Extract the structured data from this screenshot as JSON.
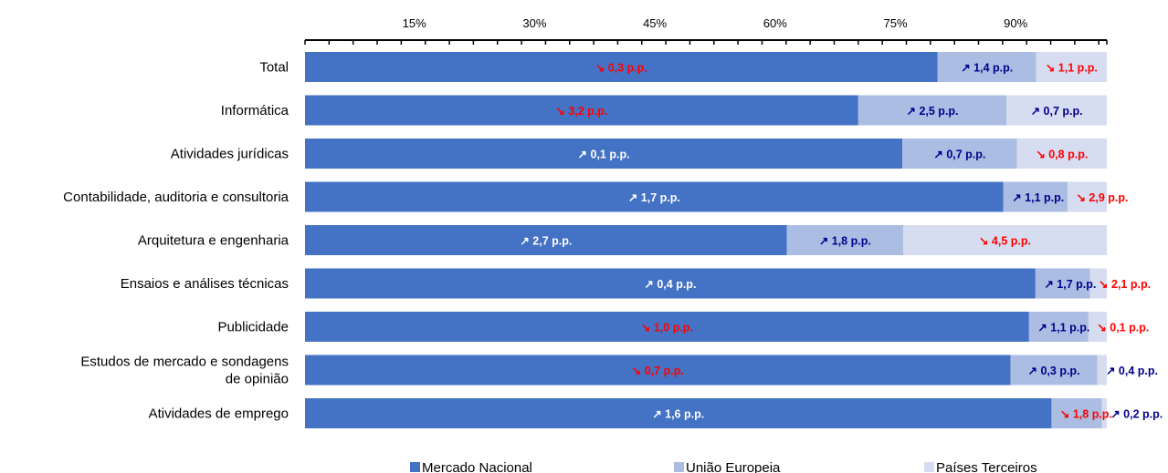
{
  "chart_data": {
    "type": "bar",
    "orientation": "horizontal",
    "stacked": true,
    "xlim": [
      0,
      100
    ],
    "x_ticks": [
      "15%",
      "30%",
      "45%",
      "60%",
      "75%",
      "90%"
    ],
    "tick_values": [
      15,
      30,
      45,
      60,
      75,
      90
    ],
    "categories": [
      "Total",
      "Informática",
      "Atividades jurídicas",
      "Contabilidade, auditoria  e consultoria",
      "Arquitetura e engenharia",
      "Ensaios e análises técnicas",
      "Publicidade",
      "Estudos de mercado e sondagens de opinião",
      "Atividades de emprego"
    ],
    "category_lines": [
      [
        "Total"
      ],
      [
        "Informática"
      ],
      [
        "Atividades jurídicas"
      ],
      [
        "Contabilidade, auditoria  e consultoria"
      ],
      [
        "Arquitetura e engenharia"
      ],
      [
        "Ensaios e análises técnicas"
      ],
      [
        "Publicidade"
      ],
      [
        "Estudos de mercado e sondagens",
        "de opinião"
      ],
      [
        "Atividades de emprego"
      ]
    ],
    "series": [
      {
        "name": "Mercado Nacional",
        "color": "#4472c4",
        "values": [
          78.9,
          69.0,
          74.5,
          87.1,
          60.1,
          91.1,
          90.3,
          88.0,
          93.1
        ],
        "labels": [
          "↘ 0,3 p.p.",
          "↘ 3,2 p.p.",
          "↗ 0,1 p.p.",
          "↗ 1,7 p.p.",
          "↗ 2,7 p.p.",
          "↗ 0,4 p.p.",
          "↘ 1,0 p.p.",
          "↘ 0,7 p.p.",
          "↗ 1,6 p.p."
        ],
        "label_colors": [
          "#ff0000",
          "#ff0000",
          "#ffffff",
          "#ffffff",
          "#ffffff",
          "#ffffff",
          "#ff0000",
          "#ff0000",
          "#ffffff"
        ]
      },
      {
        "name": "União Europeia",
        "color": "#abbde3",
        "values": [
          12.3,
          18.5,
          14.3,
          8.0,
          14.5,
          6.8,
          7.4,
          10.8,
          6.3
        ],
        "labels": [
          "↗ 1,4 p.p.",
          "↗ 2,5 p.p.",
          "↗ 0,7 p.p.",
          "↗ 1,1 p.p.",
          "↗ 1,8 p.p.",
          "↗ 1,7 p.p.",
          "↗ 1,1 p.p.",
          "↗ 0,3 p.p.",
          "↘ 1,8 p.p."
        ],
        "label_colors": [
          "#00008b",
          "#00008b",
          "#00008b",
          "#00008b",
          "#00008b",
          "#00008b",
          "#00008b",
          "#00008b",
          "#ff0000"
        ]
      },
      {
        "name": "Países Terceiros",
        "color": "#d6ddf0",
        "values": [
          8.8,
          12.5,
          11.2,
          4.9,
          25.4,
          2.1,
          2.3,
          1.2,
          0.6
        ],
        "labels": [
          "↘ 1,1 p.p.",
          "↗ 0,7 p.p.",
          "↘ 0,8 p.p.",
          "↘ 2,9 p.p.",
          "↘ 4,5 p.p.",
          "↘ 2,1 p.p.",
          "↘ 0,1 p.p.",
          "↗ 0,4 p.p.",
          "↗ 0,2 p.p."
        ],
        "label_colors": [
          "#ff0000",
          "#00008b",
          "#ff0000",
          "#ff0000",
          "#ff0000",
          "#ff0000",
          "#ff0000",
          "#00008b",
          "#00008b"
        ]
      }
    ],
    "legend_position": "bottom",
    "grid": false
  }
}
